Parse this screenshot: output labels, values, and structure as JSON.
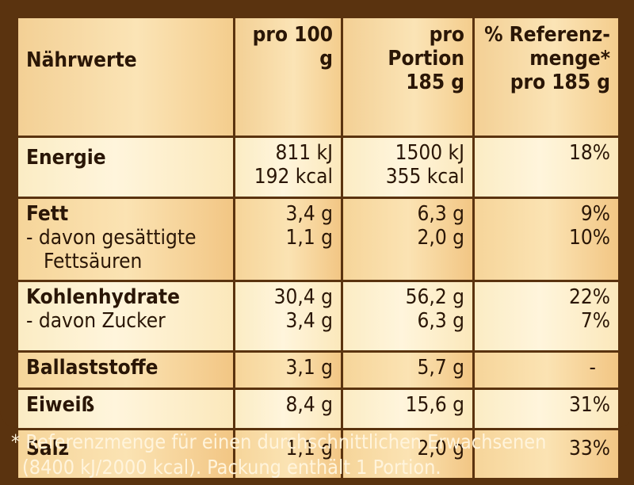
{
  "header": {
    "title": "Nährwerte",
    "col_100g": "pro 100 g",
    "col_portion_1": "pro Portion",
    "col_portion_2": "185 g",
    "col_ref_1": "% Referenz-",
    "col_ref_2": "menge*",
    "col_ref_3": "pro 185 g"
  },
  "rows": [
    {
      "labels": [
        "Energie"
      ],
      "per100": [
        "811 kJ",
        "192 kcal"
      ],
      "portion": [
        "1500 kJ",
        "355 kcal"
      ],
      "ref": [
        "18%"
      ]
    },
    {
      "labels": [
        "Fett",
        "- davon gesättigte",
        "Fettsäuren"
      ],
      "per100": [
        "3,4 g",
        "1,1 g"
      ],
      "portion": [
        "6,3 g",
        "2,0 g"
      ],
      "ref": [
        "9%",
        "10%"
      ]
    },
    {
      "labels": [
        "Kohlenhydrate",
        "- davon Zucker"
      ],
      "per100": [
        "30,4 g",
        "3,4 g"
      ],
      "portion": [
        "56,2 g",
        "6,3 g"
      ],
      "ref": [
        "22%",
        "7%"
      ]
    },
    {
      "labels": [
        "Ballaststoffe"
      ],
      "per100": [
        "3,1 g"
      ],
      "portion": [
        "5,7 g"
      ],
      "ref": [
        "-"
      ]
    },
    {
      "labels": [
        "Eiweiß"
      ],
      "per100": [
        "8,4 g"
      ],
      "portion": [
        "15,6 g"
      ],
      "ref": [
        "31%"
      ]
    },
    {
      "labels": [
        "Salz"
      ],
      "per100": [
        "1,1 g"
      ],
      "portion": [
        "2,0 g"
      ],
      "ref": [
        "33%"
      ]
    }
  ],
  "footnote": {
    "line1": "* Referenzmenge für einen durchschnittlichen Erwachsenen",
    "line2": "(8400 kJ/2000 kcal). Packung enthält 1 Portion."
  },
  "colors": {
    "frame": "#5a330f",
    "light_row": "#fff5dc",
    "dark_row": "#f6d59a",
    "footnote_text": "#fff4dc"
  }
}
